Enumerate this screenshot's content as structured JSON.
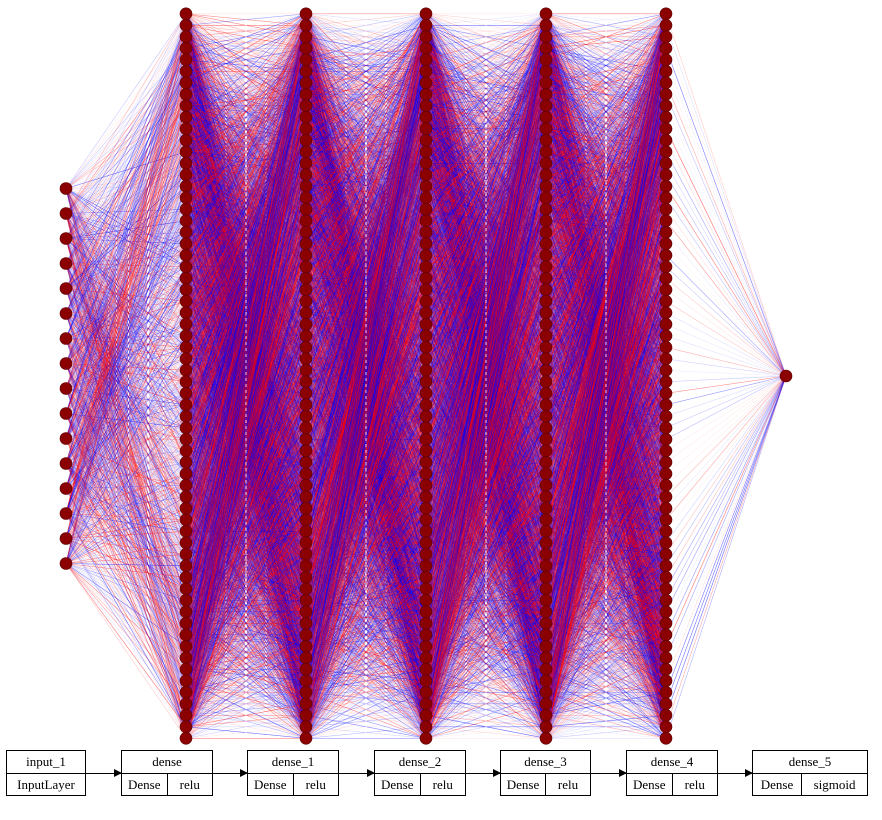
{
  "diagram": {
    "layers": [
      {
        "name": "input_1",
        "type": "InputLayer",
        "activation": null,
        "units": 16
      },
      {
        "name": "dense",
        "type": "Dense",
        "activation": "relu",
        "units": 64
      },
      {
        "name": "dense_1",
        "type": "Dense",
        "activation": "relu",
        "units": 64
      },
      {
        "name": "dense_2",
        "type": "Dense",
        "activation": "relu",
        "units": 64
      },
      {
        "name": "dense_3",
        "type": "Dense",
        "activation": "relu",
        "units": 64
      },
      {
        "name": "dense_4",
        "type": "Dense",
        "activation": "relu",
        "units": 64
      },
      {
        "name": "dense_5",
        "type": "Dense",
        "activation": "sigmoid",
        "units": 1
      }
    ],
    "colors": {
      "node": "#8b0000",
      "positive_weight": "#ff0000",
      "negative_weight": "#0000ff",
      "separator": "#ffffff"
    }
  }
}
